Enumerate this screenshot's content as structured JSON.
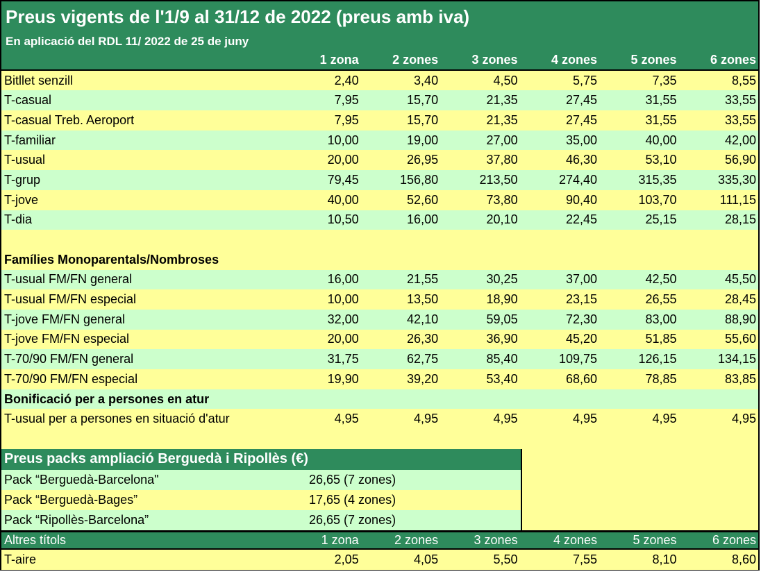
{
  "title": "Preus vigents de l'1/9 al 31/12 de 2022 (preus amb iva)",
  "subtitle": "En aplicació del RDL 11/ 2022 de 25 de juny",
  "columns": [
    "1 zona",
    "2 zones",
    "3 zones",
    "4 zones",
    "5 zones",
    "6 zones"
  ],
  "rows": [
    {
      "label": "Bitllet senzill",
      "values": [
        "2,40",
        "3,40",
        "4,50",
        "5,75",
        "7,35",
        "8,55"
      ]
    },
    {
      "label": "T-casual",
      "values": [
        "7,95",
        "15,70",
        "21,35",
        "27,45",
        "31,55",
        "33,55"
      ]
    },
    {
      "label": "T-casual Treb. Aeroport",
      "values": [
        "7,95",
        "15,70",
        "21,35",
        "27,45",
        "31,55",
        "33,55"
      ]
    },
    {
      "label": "T-familiar",
      "values": [
        "10,00",
        "19,00",
        "27,00",
        "35,00",
        "40,00",
        "42,00"
      ]
    },
    {
      "label": "T-usual",
      "values": [
        "20,00",
        "26,95",
        "37,80",
        "46,30",
        "53,10",
        "56,90"
      ]
    },
    {
      "label": "T-grup",
      "values": [
        "79,45",
        "156,80",
        "213,50",
        "274,40",
        "315,35",
        "335,30"
      ]
    },
    {
      "label": "T-jove",
      "values": [
        "40,00",
        "52,60",
        "73,80",
        "90,40",
        "103,70",
        "111,15"
      ]
    },
    {
      "label": "T-dia",
      "values": [
        "10,50",
        "16,00",
        "20,10",
        "22,45",
        "25,15",
        "28,15"
      ]
    }
  ],
  "families_heading": "Famílies Monoparentals/Nombroses",
  "families_rows": [
    {
      "label": "T-usual FM/FN general",
      "values": [
        "16,00",
        "21,55",
        "30,25",
        "37,00",
        "42,50",
        "45,50"
      ]
    },
    {
      "label": "T-usual FM/FN especial",
      "values": [
        "10,00",
        "13,50",
        "18,90",
        "23,15",
        "26,55",
        "28,45"
      ]
    },
    {
      "label": "T-jove FM/FN general",
      "values": [
        "32,00",
        "42,10",
        "59,05",
        "72,30",
        "83,00",
        "88,90"
      ]
    },
    {
      "label": "T-jove FM/FN especial",
      "values": [
        "20,00",
        "26,30",
        "36,90",
        "45,20",
        "51,85",
        "55,60"
      ]
    },
    {
      "label": "T-70/90 FM/FN general",
      "values": [
        "31,75",
        "62,75",
        "85,40",
        "109,75",
        "126,15",
        "134,15"
      ]
    },
    {
      "label": "T-70/90 FM/FN especial",
      "values": [
        "19,90",
        "39,20",
        "53,40",
        "68,60",
        "78,85",
        "83,85"
      ]
    }
  ],
  "atur_heading": "Bonificació per a persones en atur",
  "atur_row": {
    "label": "T-usual per a persones en situació d'atur",
    "values": [
      "4,95",
      "4,95",
      "4,95",
      "4,95",
      "4,95",
      "4,95"
    ]
  },
  "packs": {
    "heading": "Preus packs ampliació  Berguedà i Ripollès (€)",
    "rows": [
      {
        "label": "Pack “Berguedà-Barcelona\"",
        "value": "26,65 (7 zones)"
      },
      {
        "label": "Pack “Berguedà-Bages”",
        "value": "17,65 (4 zones)"
      },
      {
        "label": "Pack “Ripollès-Barcelona”",
        "value": "26,65 (7 zones)"
      }
    ]
  },
  "altres": {
    "heading": "Altres títols",
    "columns": [
      "1 zona",
      "2 zones",
      "3 zones",
      "4 zones",
      "5 zones",
      "6 zones"
    ],
    "rows": [
      {
        "label": "T-aire",
        "values": [
          "2,05",
          "4,05",
          "5,50",
          "7,55",
          "8,10",
          "8,60"
        ]
      }
    ]
  },
  "colors": {
    "header_green": "#2e8b5c",
    "row_yellow": "#ffff99",
    "row_green": "#ccffcc"
  }
}
